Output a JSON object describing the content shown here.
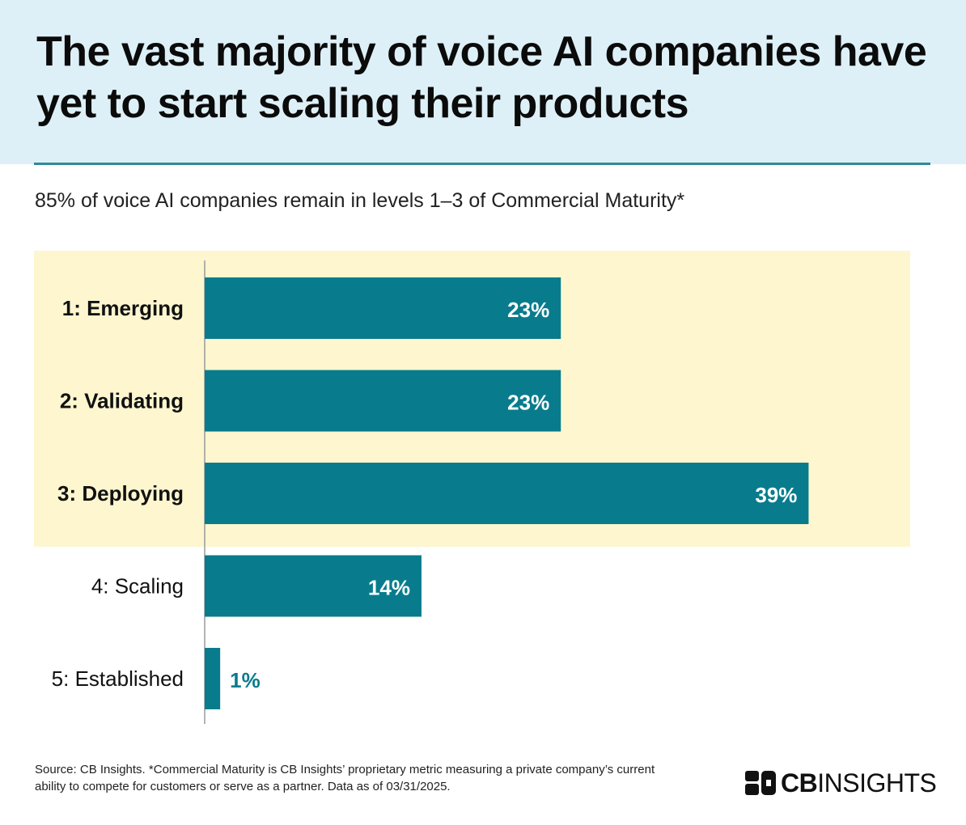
{
  "title": "The vast majority of voice AI companies have yet to start scaling their products",
  "subtitle": "85% of voice AI companies remain in levels 1–3 of Commercial Maturity*",
  "source": "Source: CB Insights. *Commercial Maturity is CB Insights’ proprietary metric measuring a private company’s current ability to compete for customers or serve as a partner. Data as of 03/31/2025.",
  "logo": {
    "bold": "CB",
    "light": "INSIGHTS"
  },
  "colors": {
    "bar": "#087c8c",
    "highlight": "#fdf6cf",
    "header_bg": "#def0f7",
    "rule": "#2f8a98",
    "label_inside": "#ffffff",
    "label_outside": "#087c8c"
  },
  "chart_data": {
    "type": "bar",
    "orientation": "horizontal",
    "categories": [
      "1: Emerging",
      "2: Validating",
      "3: Deploying",
      "4: Scaling",
      "5: Established"
    ],
    "values": [
      23,
      23,
      39,
      14,
      1
    ],
    "value_labels": [
      "23%",
      "23%",
      "39%",
      "14%",
      "1%"
    ],
    "highlighted": [
      true,
      true,
      true,
      false,
      false
    ],
    "unit": "%",
    "xlim": [
      0,
      43
    ],
    "title": "85% of voice AI companies remain in levels 1–3 of Commercial Maturity*",
    "xlabel": "",
    "ylabel": "",
    "grid": false
  }
}
